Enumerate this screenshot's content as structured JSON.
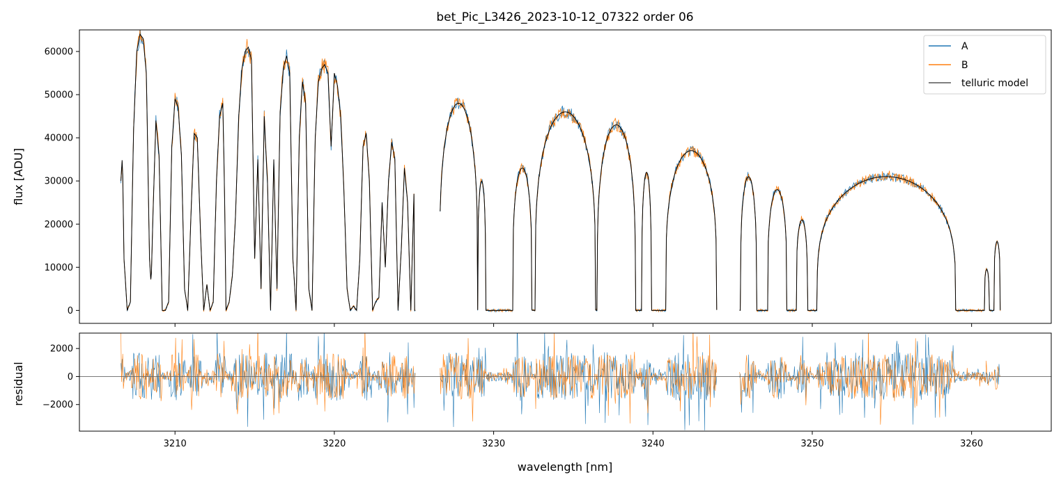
{
  "chart_data": [
    {
      "type": "line",
      "title": "bet_Pic_L3426_2023-10-12_07322  order 06",
      "xlabel": "",
      "ylabel": "flux [ADU]",
      "xlim": [
        3204,
        3265
      ],
      "ylim": [
        -3000,
        65000
      ],
      "yticks": [
        0,
        10000,
        20000,
        30000,
        40000,
        50000,
        60000
      ],
      "ytick_labels": [
        "0",
        "10000",
        "20000",
        "30000",
        "40000",
        "50000",
        "60000"
      ],
      "xticks": [
        3210,
        3220,
        3230,
        3240,
        3250,
        3260
      ],
      "grid": false,
      "legend": {
        "position": "top-right",
        "entries": [
          "A",
          "B",
          "telluric model"
        ]
      },
      "x_range_covered": [
        3206.6,
        3261.8
      ],
      "data_gaps": [
        [
          3225.1,
          3226.6
        ],
        [
          3244.0,
          3245.4
        ]
      ],
      "series": [
        {
          "name": "A",
          "color": "#1f77b4"
        },
        {
          "name": "B",
          "color": "#ff7f0e"
        },
        {
          "name": "telluric model",
          "color": "#000000",
          "x": [
            3206.6,
            3206.7,
            3206.8,
            3207.0,
            3207.2,
            3207.4,
            3207.6,
            3207.8,
            3208.0,
            3208.2,
            3208.4,
            3208.5,
            3208.6,
            3208.8,
            3209.0,
            3209.2,
            3209.4,
            3209.6,
            3209.8,
            3210.0,
            3210.2,
            3210.4,
            3210.6,
            3210.8,
            3211.0,
            3211.2,
            3211.4,
            3211.6,
            3211.8,
            3212.0,
            3212.2,
            3212.4,
            3212.6,
            3212.8,
            3213.0,
            3213.1,
            3213.2,
            3213.4,
            3213.6,
            3213.8,
            3214.0,
            3214.2,
            3214.4,
            3214.6,
            3214.8,
            3215.0,
            3215.2,
            3215.4,
            3215.6,
            3215.8,
            3216.0,
            3216.2,
            3216.4,
            3216.6,
            3216.8,
            3217.0,
            3217.2,
            3217.4,
            3217.6,
            3217.8,
            3218.0,
            3218.2,
            3218.4,
            3218.6,
            3218.8,
            3219.0,
            3219.2,
            3219.4,
            3219.6,
            3219.8,
            3220.0,
            3220.2,
            3220.4,
            3220.6,
            3220.8,
            3221.0,
            3221.2,
            3221.4,
            3221.6,
            3221.8,
            3222.0,
            3222.2,
            3222.4,
            3222.6,
            3222.8,
            3223.0,
            3223.2,
            3223.4,
            3223.6,
            3223.8,
            3224.0,
            3224.2,
            3224.4,
            3224.6,
            3224.8,
            3225.0
          ],
          "y": [
            30000,
            36000,
            12000,
            0,
            2000,
            42000,
            60000,
            64000,
            63000,
            55000,
            12000,
            6000,
            20000,
            44000,
            36000,
            0,
            0,
            2000,
            38000,
            49000,
            47000,
            36000,
            5000,
            0,
            22000,
            41000,
            40000,
            18000,
            0,
            6000,
            0,
            2000,
            30000,
            45000,
            48000,
            30000,
            0,
            2000,
            8000,
            22000,
            45000,
            56000,
            60000,
            61000,
            58000,
            12000,
            35000,
            5000,
            45000,
            30000,
            0,
            35000,
            5000,
            46000,
            56000,
            59000,
            55000,
            12000,
            0,
            40000,
            53000,
            48000,
            5000,
            0,
            40000,
            53000,
            56000,
            57000,
            55000,
            38000,
            55000,
            52000,
            45000,
            28000,
            5000,
            0,
            1000,
            0,
            12000,
            38000,
            41000,
            30000,
            0,
            2000,
            3000,
            25000,
            10000,
            30000,
            39000,
            35000,
            0,
            14000,
            33000,
            25000,
            0,
            27000
          ]
        }
      ]
    },
    {
      "type": "line",
      "title": "",
      "xlabel": "wavelength [nm]",
      "ylabel": "residual",
      "xlim": [
        3204,
        3265
      ],
      "ylim": [
        -3900,
        3100
      ],
      "yticks": [
        -2000,
        0,
        2000
      ],
      "ytick_labels": [
        "−2000",
        "0",
        "2000"
      ],
      "xticks": [
        3210,
        3220,
        3230,
        3240,
        3250,
        3260
      ],
      "xtick_labels": [
        "3210",
        "3220",
        "3230",
        "3240",
        "3250",
        "3260"
      ],
      "grid": false,
      "reference_line_y": 0,
      "series": [
        {
          "name": "A",
          "color": "#1f77b4"
        },
        {
          "name": "B",
          "color": "#ff7f0e"
        }
      ]
    }
  ]
}
